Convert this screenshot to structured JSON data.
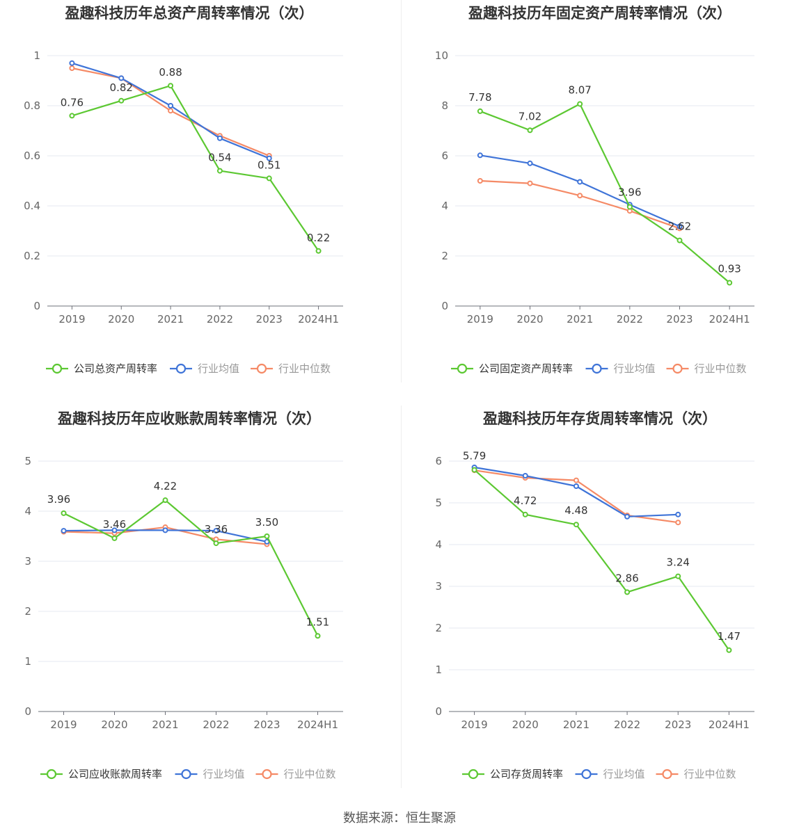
{
  "colors": {
    "company": "#5cc832",
    "avg": "#3f74d8",
    "median": "#f58a66"
  },
  "footer": {
    "source": "数据来源：恒生聚源"
  },
  "chart_data": [
    {
      "type": "line",
      "title": "盈趣科技历年总资产周转率情况（次）",
      "categories": [
        "2019",
        "2020",
        "2021",
        "2022",
        "2023",
        "2024H1"
      ],
      "ylim": [
        0,
        1
      ],
      "yticks": [
        "0",
        "0.2",
        "0.4",
        "0.6",
        "0.8",
        "1"
      ],
      "grid": true,
      "legend_position": "bottom",
      "series": [
        {
          "name": "公司总资产周转率",
          "role": "company",
          "values": [
            0.76,
            0.82,
            0.88,
            0.54,
            0.51,
            0.22
          ],
          "labels": [
            "0.76",
            "0.82",
            "0.88",
            "0.54",
            "0.51",
            "0.22"
          ]
        },
        {
          "name": "行业均值",
          "role": "avg",
          "values": [
            0.97,
            0.91,
            0.8,
            0.67,
            0.59,
            null
          ]
        },
        {
          "name": "行业中位数",
          "role": "median",
          "values": [
            0.95,
            0.91,
            0.78,
            0.68,
            0.6,
            null
          ]
        }
      ]
    },
    {
      "type": "line",
      "title": "盈趣科技历年固定资产周转率情况（次）",
      "categories": [
        "2019",
        "2020",
        "2021",
        "2022",
        "2023",
        "2024H1"
      ],
      "ylim": [
        0,
        10
      ],
      "yticks": [
        "0",
        "2",
        "4",
        "6",
        "8",
        "10"
      ],
      "grid": true,
      "legend_position": "bottom",
      "series": [
        {
          "name": "公司固定资产周转率",
          "role": "company",
          "values": [
            7.78,
            7.02,
            8.07,
            3.96,
            2.62,
            0.93
          ],
          "labels": [
            "7.78",
            "7.02",
            "8.07",
            "3.96",
            "2.62",
            "0.93"
          ]
        },
        {
          "name": "行业均值",
          "role": "avg",
          "values": [
            6.02,
            5.7,
            4.96,
            4.05,
            3.18,
            null
          ]
        },
        {
          "name": "行业中位数",
          "role": "median",
          "values": [
            5.0,
            4.9,
            4.41,
            3.8,
            3.1,
            null
          ]
        }
      ]
    },
    {
      "type": "line",
      "title": "盈趣科技历年应收账款周转率情况（次）",
      "categories": [
        "2019",
        "2020",
        "2021",
        "2022",
        "2023",
        "2024H1"
      ],
      "ylim": [
        0,
        5
      ],
      "yticks": [
        "0",
        "1",
        "2",
        "3",
        "4",
        "5"
      ],
      "grid": true,
      "legend_position": "bottom",
      "series": [
        {
          "name": "公司应收账款周转率",
          "role": "company",
          "values": [
            3.96,
            3.46,
            4.22,
            3.36,
            3.5,
            1.51
          ],
          "labels": [
            "3.96",
            "3.46",
            "4.22",
            "3.36",
            "3.50",
            "1.51"
          ]
        },
        {
          "name": "行业均值",
          "role": "avg",
          "values": [
            3.61,
            3.62,
            3.62,
            3.61,
            3.39,
            null
          ]
        },
        {
          "name": "行业中位数",
          "role": "median",
          "values": [
            3.59,
            3.56,
            3.68,
            3.44,
            3.34,
            null
          ]
        }
      ]
    },
    {
      "type": "line",
      "title": "盈趣科技历年存货周转率情况（次）",
      "categories": [
        "2019",
        "2020",
        "2021",
        "2022",
        "2023",
        "2024H1"
      ],
      "ylim": [
        0,
        6
      ],
      "yticks": [
        "0",
        "1",
        "2",
        "3",
        "4",
        "5",
        "6"
      ],
      "grid": true,
      "legend_position": "bottom",
      "series": [
        {
          "name": "公司存货周转率",
          "role": "company",
          "values": [
            5.79,
            4.72,
            4.48,
            2.86,
            3.24,
            1.47
          ],
          "labels": [
            "5.79",
            "4.72",
            "4.48",
            "2.86",
            "3.24",
            "1.47"
          ]
        },
        {
          "name": "行业均值",
          "role": "avg",
          "values": [
            5.85,
            5.65,
            5.4,
            4.67,
            4.72,
            null
          ]
        },
        {
          "name": "行业中位数",
          "role": "median",
          "values": [
            5.78,
            5.6,
            5.54,
            4.7,
            4.53,
            null
          ]
        }
      ]
    }
  ]
}
